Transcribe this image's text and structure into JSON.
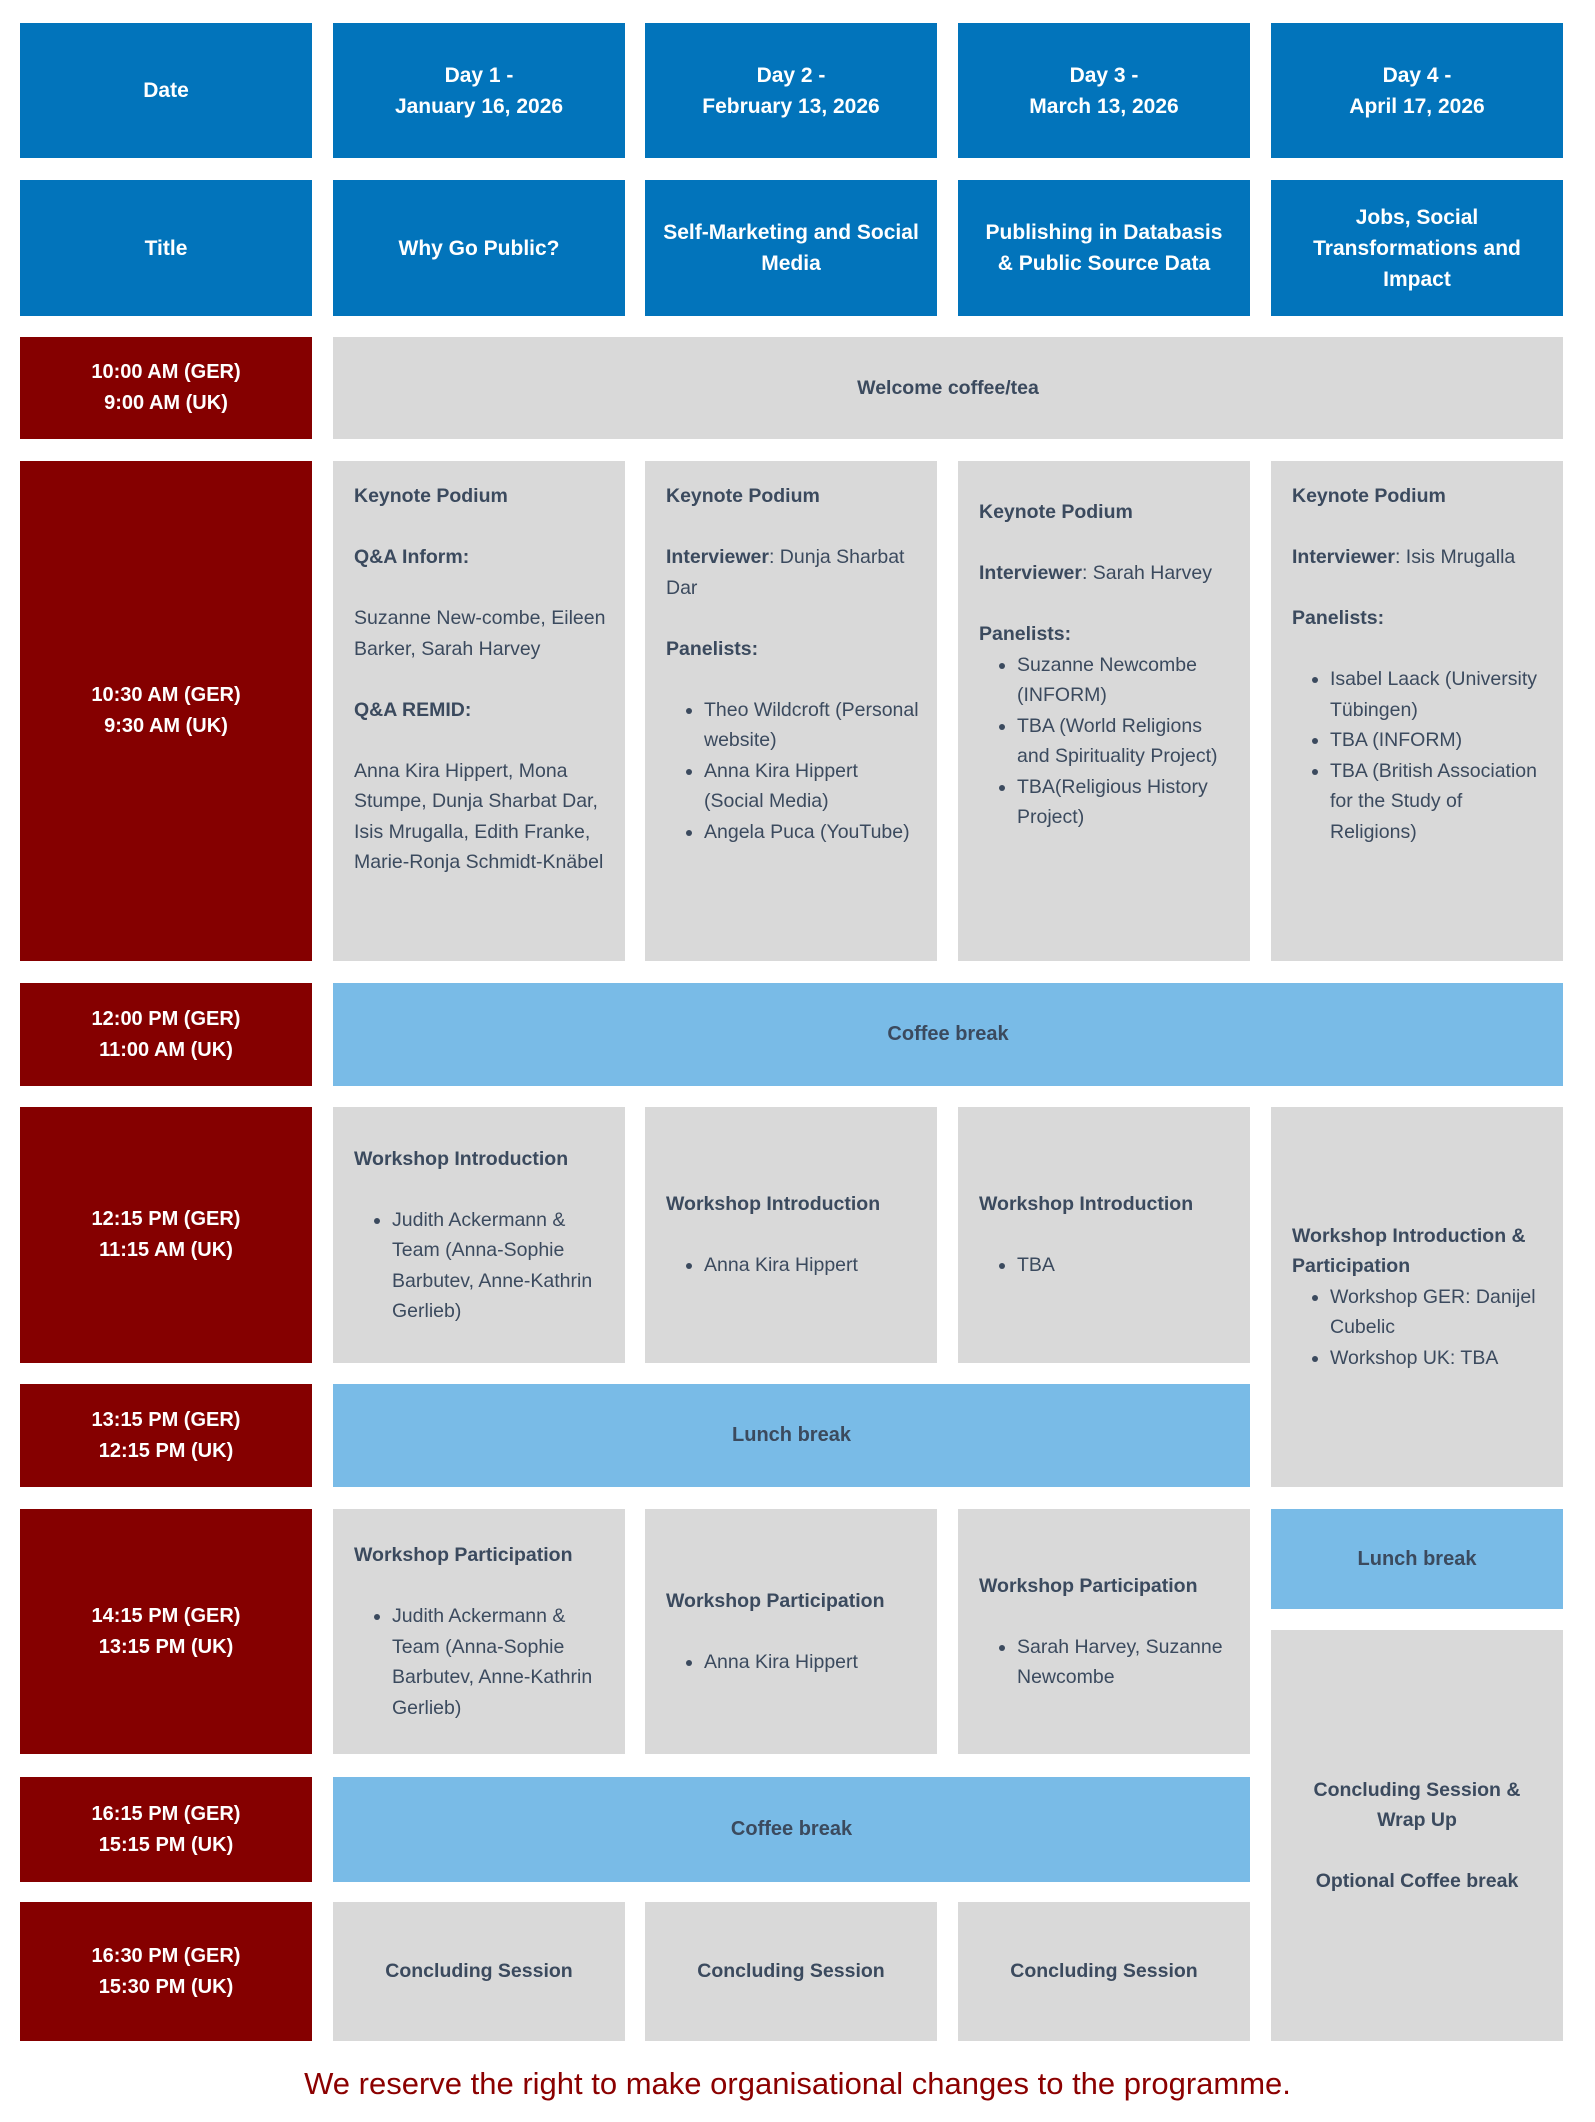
{
  "colors": {
    "header_blue": "#0274bb",
    "time_red": "#850000",
    "session_gray": "#d9d9d9",
    "break_blue": "#79bbe7",
    "text": "#3b4a5e",
    "footer": "#8b0000"
  },
  "header": {
    "date_label": "Date",
    "days": [
      {
        "line1": "Day 1 -",
        "line2": "January 16, 2026"
      },
      {
        "line1": "Day 2 -",
        "line2": "February 13, 2026"
      },
      {
        "line1": "Day 3 -",
        "line2": "March 13, 2026"
      },
      {
        "line1": "Day 4 -",
        "line2": "April 17, 2026"
      }
    ]
  },
  "titles": {
    "label": "Title",
    "items": [
      "Why Go Public?",
      "Self-Marketing and Social Media",
      "Publishing in Databasis & Public Source Data",
      "Jobs, Social Transformations and Impact"
    ]
  },
  "times": [
    {
      "ger": "10:00 AM (GER)",
      "uk": "9:00 AM (UK)"
    },
    {
      "ger": "10:30 AM (GER)",
      "uk": "9:30 AM (UK)"
    },
    {
      "ger": "12:00 PM (GER)",
      "uk": "11:00 AM (UK)"
    },
    {
      "ger": "12:15 PM (GER)",
      "uk": "11:15 AM (UK)"
    },
    {
      "ger": "13:15 PM (GER)",
      "uk": "12:15 PM (UK)"
    },
    {
      "ger": "14:15 PM (GER)",
      "uk": "13:15 PM (UK)"
    },
    {
      "ger": "16:15 PM (GER)",
      "uk": "15:15 PM (UK)"
    },
    {
      "ger": "16:30 PM (GER)",
      "uk": "15:30 PM (UK)"
    }
  ],
  "welcome": "Welcome coffee/tea",
  "keynote": {
    "day1": {
      "heading": "Keynote Podium",
      "qa_inform_label": "Q&A Inform:",
      "qa_inform_text": "Suzanne New-combe, Eileen Barker, Sarah Harvey",
      "qa_remid_label": "Q&A REMID:",
      "qa_remid_text": "Anna Kira Hippert, Mona Stumpe, Dunja Sharbat Dar, Isis Mrugalla, Edith Franke, Marie-Ronja Schmidt-Knäbel"
    },
    "day2": {
      "heading": "Keynote Podium",
      "interviewer_label": "Interviewer",
      "interviewer": ": Dunja Sharbat Dar",
      "panelists_label": "Panelists:",
      "panelists": [
        "Theo Wildcroft (Personal website)",
        "Anna Kira Hippert (Social Media)",
        "Angela Puca (YouTube)"
      ]
    },
    "day3": {
      "heading": "Keynote Podium",
      "interviewer_label": "Interviewer",
      "interviewer": ": Sarah Harvey",
      "panelists_label": "Panelists:",
      "panelists": [
        "Suzanne Newcombe (INFORM)",
        "TBA (World Religions and Spirituality Project)",
        "TBA(Religious History Project)"
      ]
    },
    "day4": {
      "heading": "Keynote Podium",
      "interviewer_label": "Interviewer",
      "interviewer": ": Isis Mrugalla",
      "panelists_label": "Panelists:",
      "panelists": [
        "Isabel Laack (University Tübingen)",
        "TBA (INFORM)",
        "TBA (British Association for the Study of Religions)"
      ]
    }
  },
  "coffee_break": "Coffee break",
  "workshop_intro": {
    "day1": {
      "heading": "Workshop Introduction",
      "items": [
        "Judith Ackermann & Team (Anna-Sophie Barbutev, Anne-Kathrin Gerlieb)"
      ]
    },
    "day2": {
      "heading": "Workshop Introduction",
      "items": [
        "Anna Kira Hippert"
      ]
    },
    "day3": {
      "heading": "Workshop Introduction",
      "items": [
        "TBA"
      ]
    },
    "day4": {
      "heading": "Workshop Introduction & Participation",
      "items": [
        "Workshop GER: Danijel Cubelic",
        "Workshop UK: TBA"
      ]
    }
  },
  "lunch_break": "Lunch break",
  "day4_lunch_break": "Lunch break",
  "workshop_participation": {
    "day1": {
      "heading": "Workshop Participation",
      "items": [
        "Judith Ackermann & Team (Anna-Sophie Barbutev, Anne-Kathrin Gerlieb)"
      ]
    },
    "day2": {
      "heading": "Workshop Participation",
      "items": [
        "Anna Kira Hippert"
      ]
    },
    "day3": {
      "heading": "Workshop Participation",
      "items": [
        "Sarah Harvey, Suzanne Newcombe"
      ]
    }
  },
  "coffee_break_2": "Coffee break",
  "day4_concluding": {
    "line1": "Concluding Session & Wrap Up",
    "line2": "Optional Coffee break"
  },
  "concluding": [
    "Concluding Session",
    "Concluding Session",
    "Concluding Session"
  ],
  "footer": "We reserve the right to make organisational changes to the programme."
}
